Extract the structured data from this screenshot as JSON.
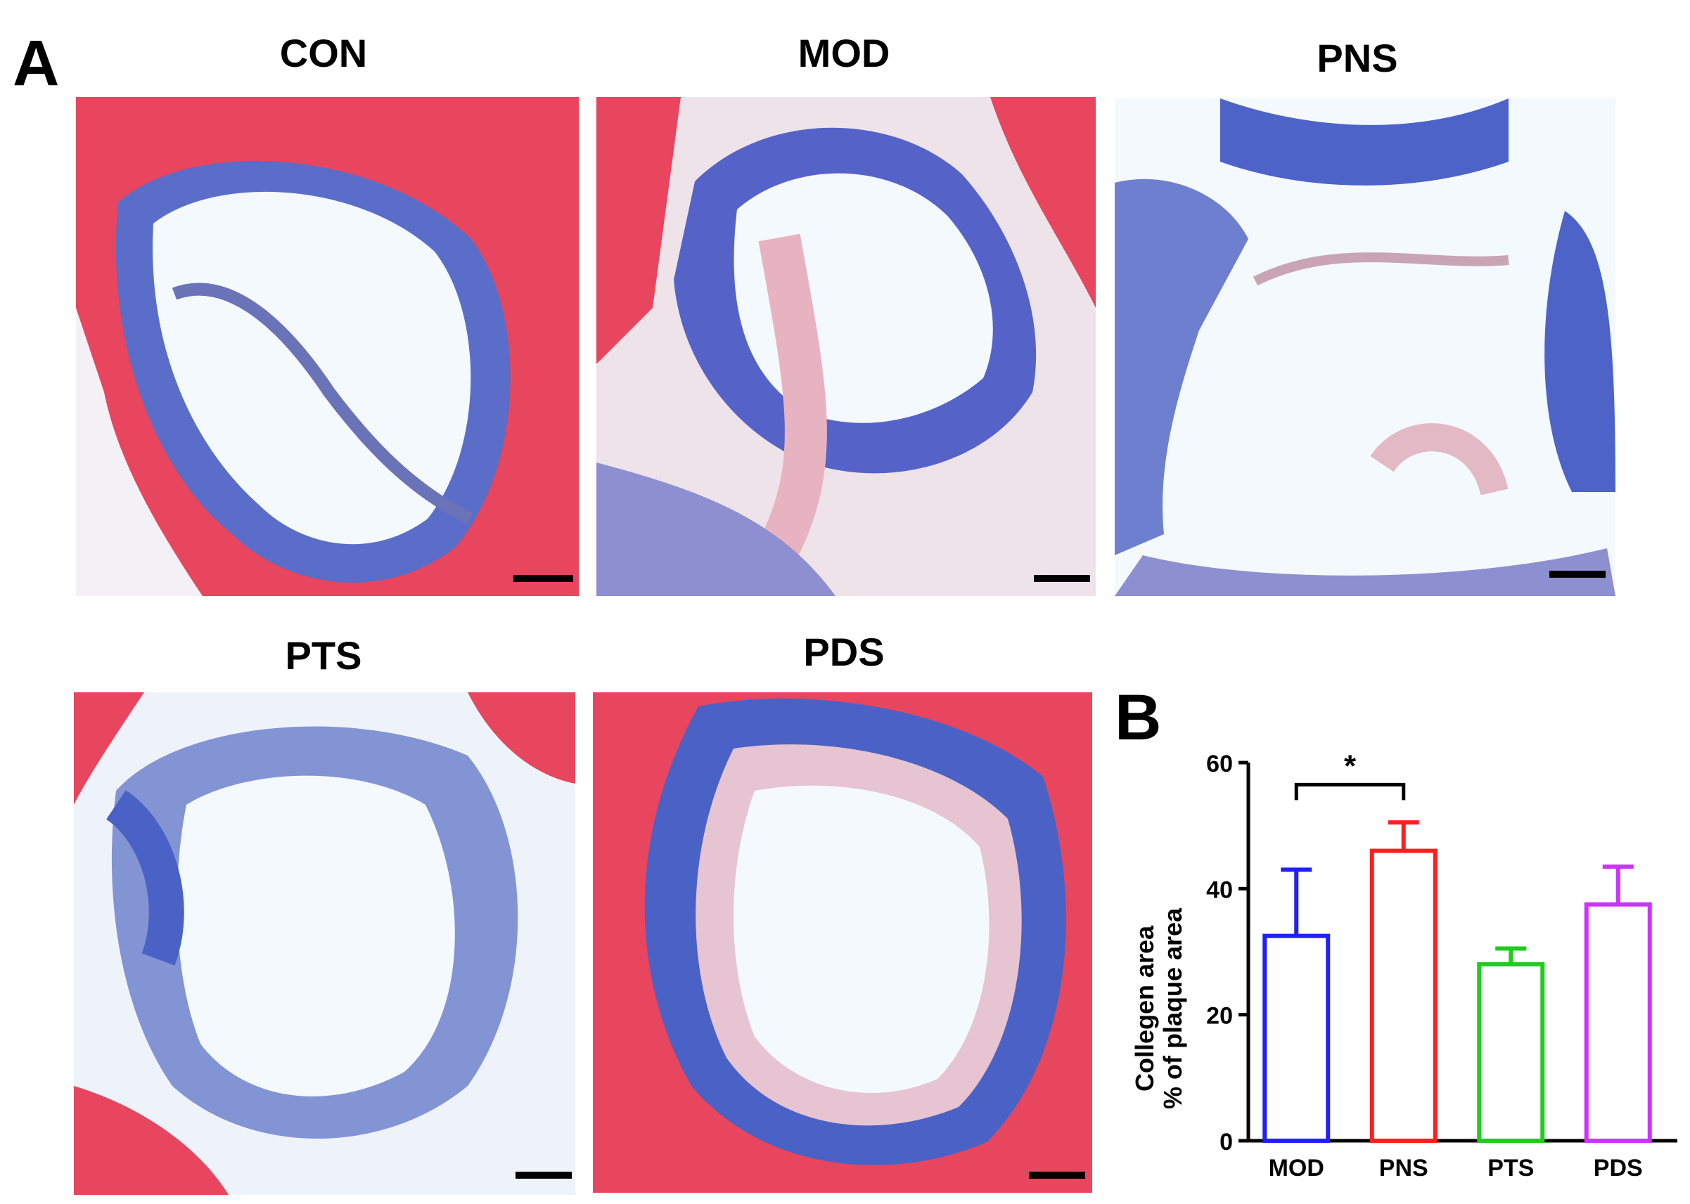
{
  "panels": {
    "a_letter": "A",
    "b_letter": "B"
  },
  "images": {
    "con": "CON",
    "mod": "MOD",
    "pns": "PNS",
    "pts": "PTS",
    "pds": "PDS"
  },
  "colors": {
    "muscle": "#e8455e",
    "collagen": "#4a62c6",
    "lumen": "#f4f9fd",
    "mod": "#1f1fff",
    "pns": "#ff1f1f",
    "pts": "#1fcc1f",
    "pds": "#cc33ff"
  },
  "chart_data": {
    "type": "bar",
    "categories": [
      "MOD",
      "PNS",
      "PTS",
      "PDS"
    ],
    "values": [
      32.5,
      46,
      28,
      37.5
    ],
    "errors": [
      10.5,
      4.5,
      2.5,
      6
    ],
    "bar_colors": [
      "#1f1fff",
      "#ff1f1f",
      "#1fcc1f",
      "#cc33ff"
    ],
    "ylabel_line1": "Collegen area",
    "ylabel_line2": "% of plaque area",
    "ylim": [
      0,
      60
    ],
    "yticks": [
      "0",
      "20",
      "40",
      "60"
    ],
    "significance": {
      "from": 0,
      "to": 1,
      "label": "*"
    },
    "grid": false,
    "legend": "none"
  }
}
